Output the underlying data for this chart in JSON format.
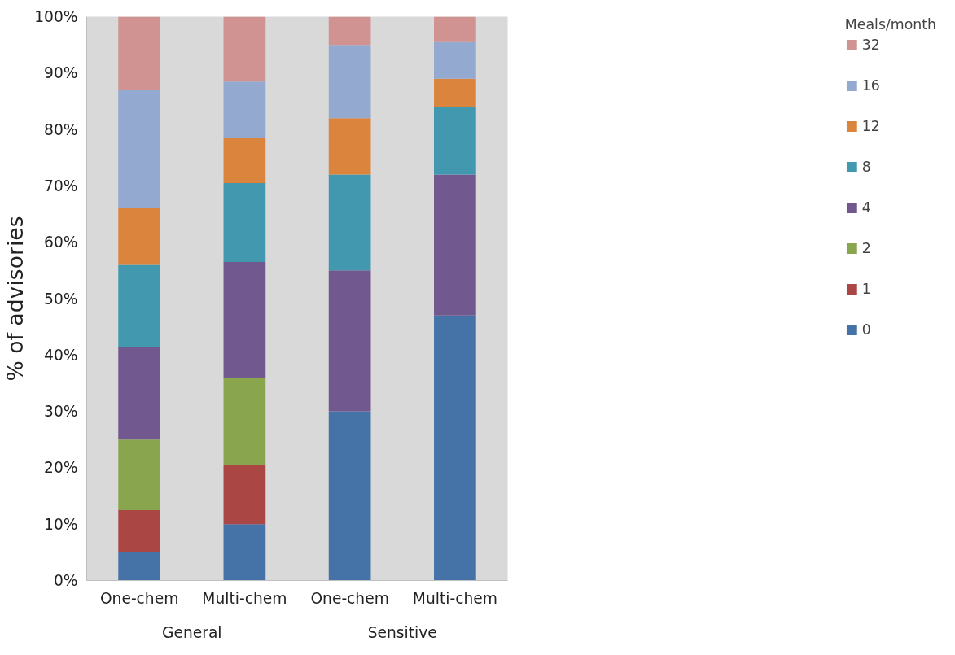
{
  "chart_data": {
    "type": "bar",
    "stacked": true,
    "ylabel": "% of advisories",
    "legend_title": "Meals/month",
    "legend": "right",
    "grid": false,
    "categories": [
      "One-chem",
      "Multi-chem",
      "One-chem",
      "Multi-chem"
    ],
    "annotations": [
      "General",
      "Sensitive"
    ],
    "ylim": [
      0,
      100
    ],
    "yticks": [
      {
        "value": 0,
        "label": "0%"
      },
      {
        "value": 10,
        "label": "10%"
      },
      {
        "value": 20,
        "label": "20%"
      },
      {
        "value": 30,
        "label": "30%"
      },
      {
        "value": 40,
        "label": "40%"
      },
      {
        "value": 50,
        "label": "50%"
      },
      {
        "value": 60,
        "label": "60%"
      },
      {
        "value": 70,
        "label": "70%"
      },
      {
        "value": 80,
        "label": "80%"
      },
      {
        "value": 90,
        "label": "90%"
      },
      {
        "value": 100,
        "label": "100%"
      }
    ],
    "series": [
      {
        "name": "0",
        "color": "#4572a7",
        "values": [
          5,
          10,
          30,
          47
        ]
      },
      {
        "name": "1",
        "color": "#aa4643",
        "values": [
          7.5,
          10.5,
          0,
          0
        ]
      },
      {
        "name": "2",
        "color": "#89a54e",
        "values": [
          12.5,
          15.5,
          0,
          0
        ]
      },
      {
        "name": "4",
        "color": "#71588f",
        "values": [
          16.5,
          20.5,
          25,
          25
        ]
      },
      {
        "name": "8",
        "color": "#4198af",
        "values": [
          14.5,
          14,
          17,
          12
        ]
      },
      {
        "name": "12",
        "color": "#db843d",
        "values": [
          10,
          8,
          10,
          5
        ]
      },
      {
        "name": "16",
        "color": "#93a9cf",
        "values": [
          21,
          10,
          13,
          6.5
        ]
      },
      {
        "name": "32",
        "color": "#d19392",
        "values": [
          13,
          11.5,
          5,
          4.5
        ]
      }
    ]
  }
}
